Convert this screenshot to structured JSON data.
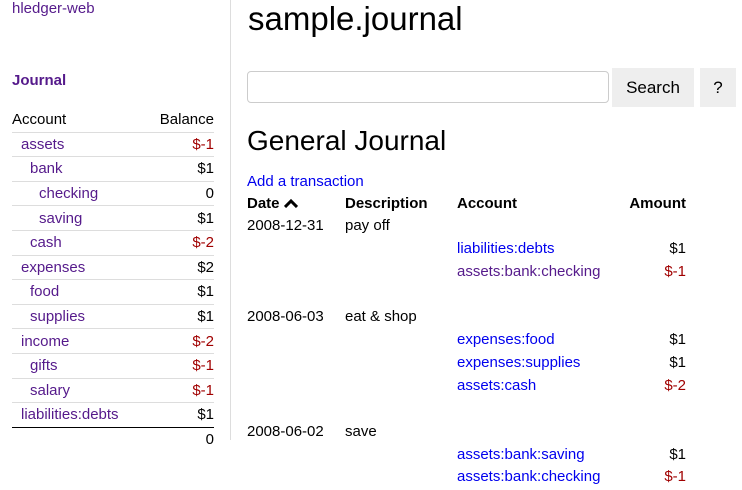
{
  "sidebar": {
    "brand": "hledger-web",
    "journal_link": "Journal",
    "headers": {
      "account": "Account",
      "balance": "Balance"
    },
    "accounts": [
      {
        "name": "assets",
        "balance": "$-1",
        "level": 1,
        "neg": true
      },
      {
        "name": "bank",
        "balance": "$1",
        "level": 2,
        "neg": false
      },
      {
        "name": "checking",
        "balance": "0",
        "level": 3,
        "neg": false
      },
      {
        "name": "saving",
        "balance": "$1",
        "level": 3,
        "neg": false
      },
      {
        "name": "cash",
        "balance": "$-2",
        "level": 2,
        "neg": true
      },
      {
        "name": "expenses",
        "balance": "$2",
        "level": 1,
        "neg": false
      },
      {
        "name": "food",
        "balance": "$1",
        "level": 2,
        "neg": false
      },
      {
        "name": "supplies",
        "balance": "$1",
        "level": 2,
        "neg": false
      },
      {
        "name": "income",
        "balance": "$-2",
        "level": 1,
        "neg": true
      },
      {
        "name": "gifts",
        "balance": "$-1",
        "level": 2,
        "neg": true
      },
      {
        "name": "salary",
        "balance": "$-1",
        "level": 2,
        "neg": true
      },
      {
        "name": "liabilities:debts",
        "balance": "$1",
        "level": 1,
        "neg": false
      }
    ],
    "total": "0"
  },
  "main": {
    "title": "sample.journal",
    "search": {
      "value": "",
      "placeholder": "",
      "button": "Search",
      "help": "?"
    },
    "heading": "General Journal",
    "add_link": "Add a transaction",
    "columns": {
      "date": "Date",
      "sort_icon": "chevron-up-icon",
      "description": "Description",
      "account": "Account",
      "amount": "Amount"
    },
    "transactions": [
      {
        "date": "2008-12-31",
        "description": "pay off",
        "postings": [
          {
            "account": "liabilities:debts",
            "amount": "$1",
            "visited": false
          },
          {
            "account": "assets:bank:checking",
            "amount": "$-1",
            "visited": true
          }
        ]
      },
      {
        "date": "2008-06-03",
        "description": "eat & shop",
        "postings": [
          {
            "account": "expenses:food",
            "amount": "$1",
            "visited": false
          },
          {
            "account": "expenses:supplies",
            "amount": "$1",
            "visited": false
          },
          {
            "account": "assets:cash",
            "amount": "$-2",
            "visited": false
          }
        ]
      },
      {
        "date": "2008-06-02",
        "description": "save",
        "postings": [
          {
            "account": "assets:bank:saving",
            "amount": "$1",
            "visited": false
          },
          {
            "account": "assets:bank:checking",
            "amount": "$-1",
            "visited": false
          }
        ]
      }
    ]
  },
  "colors": {
    "link": "#0000ee",
    "visited": "#551a8b",
    "negative": "#a00000"
  }
}
